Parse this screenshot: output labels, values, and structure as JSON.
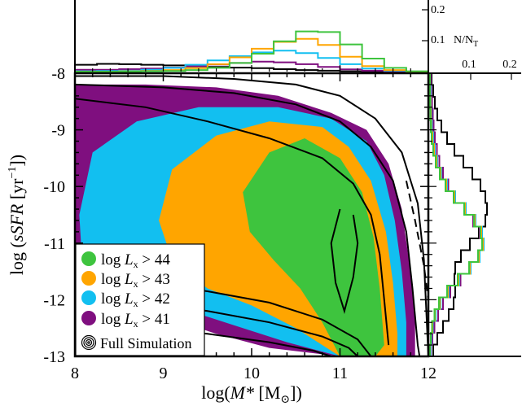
{
  "chart_data": {
    "type": "area",
    "xlabel_prefix": "log(",
    "xlabel_var": "M*",
    "xlabel_unit": " [M",
    "xlabel_sub": "⊙",
    "xlabel_suffix": "])",
    "ylabel_prefix": "log (",
    "ylabel_var": "sSFR",
    "ylabel_unit": " [yr",
    "ylabel_sup": "−1",
    "ylabel_suffix": "])",
    "xlim": [
      8,
      12
    ],
    "ylim": [
      -13,
      -8
    ],
    "x_ticks": [
      "8",
      "9",
      "10",
      "11",
      "12"
    ],
    "y_ticks": [
      "-8",
      "-9",
      "-10",
      "-11",
      "-12",
      "-13"
    ],
    "top_hist_ticks": [
      "0.1",
      "0.2"
    ],
    "top_hist_label": "N/N",
    "top_hist_label_sub": "T",
    "right_hist_ticks": [
      "0.1",
      "0.2"
    ],
    "legend_placement": "lower-left",
    "series": [
      {
        "name": "log L_x > 41",
        "label_prefix": "log ",
        "label_var": "L",
        "label_sub": "x",
        "label_suffix": " > 41",
        "color": "#7f0f7f",
        "contour": [
          [
            8.0,
            -8.2
          ],
          [
            8.8,
            -8.2
          ],
          [
            9.6,
            -8.25
          ],
          [
            10.3,
            -8.4
          ],
          [
            10.9,
            -8.7
          ],
          [
            11.3,
            -9.0
          ],
          [
            11.55,
            -9.6
          ],
          [
            11.7,
            -10.4
          ],
          [
            11.78,
            -11.3
          ],
          [
            11.85,
            -12.2
          ],
          [
            11.85,
            -13.0
          ],
          [
            11.0,
            -13.0
          ],
          [
            10.2,
            -12.85
          ],
          [
            9.6,
            -12.6
          ],
          [
            9.0,
            -12.3
          ],
          [
            8.5,
            -12.05
          ],
          [
            8.0,
            -11.85
          ]
        ],
        "top_hist": [
          0.006,
          0.006,
          0.008,
          0.01,
          0.013,
          0.018,
          0.023,
          0.028,
          0.032,
          0.03,
          0.024,
          0.015,
          0.007,
          0.003,
          0.001,
          0.0
        ],
        "right_hist": [
          0.002,
          0.003,
          0.005,
          0.007,
          0.009,
          0.012,
          0.017,
          0.023,
          0.032,
          0.045,
          0.062,
          0.085,
          0.106,
          0.122,
          0.128,
          0.12,
          0.1,
          0.075,
          0.05,
          0.032,
          0.02,
          0.011,
          0.006,
          0.002
        ]
      },
      {
        "name": "log L_x > 42",
        "label_prefix": "log ",
        "label_var": "L",
        "label_sub": "x",
        "label_suffix": " > 42",
        "color": "#12bff0",
        "contour": [
          [
            8.2,
            -9.4
          ],
          [
            8.7,
            -8.85
          ],
          [
            9.4,
            -8.6
          ],
          [
            10.3,
            -8.6
          ],
          [
            10.9,
            -8.8
          ],
          [
            11.3,
            -9.2
          ],
          [
            11.5,
            -9.8
          ],
          [
            11.62,
            -10.6
          ],
          [
            11.7,
            -11.5
          ],
          [
            11.75,
            -12.4
          ],
          [
            11.75,
            -13.0
          ],
          [
            11.0,
            -13.0
          ],
          [
            10.4,
            -12.75
          ],
          [
            9.8,
            -12.45
          ],
          [
            9.2,
            -12.15
          ],
          [
            8.6,
            -11.95
          ],
          [
            8.1,
            -11.8
          ],
          [
            8.05,
            -10.5
          ]
        ],
        "top_hist": [
          0.001,
          0.002,
          0.003,
          0.006,
          0.012,
          0.022,
          0.036,
          0.05,
          0.062,
          0.068,
          0.06,
          0.044,
          0.024,
          0.01,
          0.003,
          0.0
        ],
        "right_hist": [
          0.0,
          0.001,
          0.002,
          0.003,
          0.005,
          0.008,
          0.012,
          0.018,
          0.028,
          0.042,
          0.062,
          0.088,
          0.112,
          0.128,
          0.132,
          0.122,
          0.1,
          0.072,
          0.046,
          0.026,
          0.014,
          0.007,
          0.003,
          0.001
        ]
      },
      {
        "name": "log L_x > 43",
        "label_prefix": "log ",
        "label_var": "L",
        "label_sub": "x",
        "label_suffix": " > 43",
        "color": "#ffa500",
        "contour": [
          [
            9.1,
            -9.7
          ],
          [
            9.6,
            -9.1
          ],
          [
            10.2,
            -8.85
          ],
          [
            10.8,
            -8.95
          ],
          [
            11.1,
            -9.3
          ],
          [
            11.35,
            -9.9
          ],
          [
            11.52,
            -10.8
          ],
          [
            11.6,
            -11.7
          ],
          [
            11.65,
            -12.6
          ],
          [
            11.65,
            -13.0
          ],
          [
            11.0,
            -13.0
          ],
          [
            10.5,
            -12.5
          ],
          [
            10.0,
            -12.1
          ],
          [
            9.5,
            -11.8
          ],
          [
            9.1,
            -11.3
          ],
          [
            8.95,
            -10.6
          ]
        ],
        "top_hist": [
          0.0,
          0.0,
          0.001,
          0.002,
          0.005,
          0.011,
          0.024,
          0.046,
          0.074,
          0.096,
          0.106,
          0.086,
          0.048,
          0.018,
          0.005,
          0.0
        ],
        "right_hist": [
          0.0,
          0.0,
          0.001,
          0.002,
          0.003,
          0.006,
          0.01,
          0.016,
          0.026,
          0.04,
          0.06,
          0.086,
          0.11,
          0.126,
          0.13,
          0.12,
          0.098,
          0.07,
          0.044,
          0.024,
          0.012,
          0.006,
          0.002,
          0.0
        ]
      },
      {
        "name": "log L_x > 44",
        "label_prefix": "log ",
        "label_var": "L",
        "label_sub": "x",
        "label_suffix": " > 44",
        "color": "#3ec43e",
        "contour": [
          [
            9.9,
            -10.1
          ],
          [
            10.2,
            -9.4
          ],
          [
            10.6,
            -9.15
          ],
          [
            11.0,
            -9.5
          ],
          [
            11.25,
            -10.1
          ],
          [
            11.38,
            -10.9
          ],
          [
            11.45,
            -11.8
          ],
          [
            11.5,
            -12.8
          ],
          [
            11.4,
            -13.0
          ],
          [
            11.0,
            -13.0
          ],
          [
            10.8,
            -12.4
          ],
          [
            10.55,
            -11.8
          ],
          [
            10.25,
            -11.3
          ],
          [
            9.98,
            -10.8
          ]
        ],
        "top_hist": [
          0.0,
          0.0,
          0.0,
          0.001,
          0.002,
          0.005,
          0.012,
          0.028,
          0.058,
          0.098,
          0.13,
          0.128,
          0.088,
          0.042,
          0.012,
          0.001
        ],
        "right_hist": [
          0.0,
          0.0,
          0.0,
          0.001,
          0.002,
          0.004,
          0.008,
          0.014,
          0.024,
          0.038,
          0.058,
          0.084,
          0.108,
          0.124,
          0.128,
          0.118,
          0.096,
          0.068,
          0.042,
          0.022,
          0.011,
          0.005,
          0.002,
          0.0
        ]
      },
      {
        "name": "Full Simulation",
        "label": "Full Simulation",
        "color": "#000000",
        "contours": [
          [
            [
              8.0,
              -8.05
            ],
            [
              9.0,
              -8.05
            ],
            [
              9.8,
              -8.1
            ],
            [
              10.5,
              -8.2
            ],
            [
              11.0,
              -8.4
            ],
            [
              11.4,
              -8.8
            ],
            [
              11.7,
              -9.4
            ],
            [
              11.88,
              -10.3
            ],
            [
              11.95,
              -11.3
            ],
            [
              11.98,
              -12.3
            ],
            [
              12.0,
              -13.0
            ]
          ],
          [
            [
              8.0,
              -8.2
            ],
            [
              9.0,
              -8.25
            ],
            [
              9.8,
              -8.35
            ],
            [
              10.5,
              -8.55
            ],
            [
              11.0,
              -8.85
            ],
            [
              11.35,
              -9.3
            ],
            [
              11.6,
              -9.9
            ],
            [
              11.75,
              -10.8
            ],
            [
              11.82,
              -11.8
            ],
            [
              11.88,
              -12.8
            ],
            [
              11.9,
              -13.0
            ]
          ],
          [
            [
              8.0,
              -8.45
            ],
            [
              8.8,
              -8.6
            ],
            [
              9.5,
              -8.85
            ],
            [
              10.2,
              -9.15
            ],
            [
              10.8,
              -9.5
            ],
            [
              11.15,
              -9.95
            ],
            [
              11.35,
              -10.5
            ],
            [
              11.45,
              -11.2
            ],
            [
              11.5,
              -12.0
            ],
            [
              11.55,
              -12.8
            ]
          ],
          [
            [
              11.0,
              -10.4
            ],
            [
              10.9,
              -11.0
            ],
            [
              10.95,
              -11.7
            ],
            [
              11.05,
              -12.2
            ],
            [
              11.15,
              -11.6
            ],
            [
              11.2,
              -11.0
            ],
            [
              11.15,
              -10.5
            ]
          ],
          [
            [
              8.0,
              -11.6
            ],
            [
              8.8,
              -11.7
            ],
            [
              9.5,
              -11.85
            ],
            [
              10.2,
              -12.05
            ],
            [
              10.8,
              -12.35
            ],
            [
              11.2,
              -12.7
            ],
            [
              11.35,
              -13.0
            ]
          ],
          [
            [
              8.0,
              -11.95
            ],
            [
              8.8,
              -12.05
            ],
            [
              9.5,
              -12.2
            ],
            [
              10.2,
              -12.4
            ],
            [
              10.8,
              -12.65
            ],
            [
              11.1,
              -12.85
            ],
            [
              11.2,
              -13.0
            ]
          ],
          [
            [
              8.0,
              -12.35
            ],
            [
              8.8,
              -12.5
            ],
            [
              9.5,
              -12.6
            ],
            [
              10.2,
              -12.75
            ],
            [
              10.7,
              -12.9
            ],
            [
              10.9,
              -13.0
            ]
          ],
          [
            [
              11.75,
              -9.9
            ],
            [
              11.85,
              -10.6
            ],
            [
              11.95,
              -11.4
            ],
            [
              12.0,
              -12.0
            ]
          ]
        ],
        "top_hist": [
          0.022,
          0.025,
          0.024,
          0.022,
          0.02,
          0.017,
          0.015,
          0.013,
          0.011,
          0.008,
          0.005,
          0.003,
          0.001,
          0.0,
          0.0,
          0.0
        ],
        "right_hist": [
          0.004,
          0.008,
          0.012,
          0.018,
          0.028,
          0.042,
          0.06,
          0.082,
          0.104,
          0.124,
          0.136,
          0.14,
          0.136,
          0.12,
          0.098,
          0.076,
          0.062,
          0.06,
          0.062,
          0.058,
          0.046,
          0.032,
          0.018,
          0.008
        ]
      }
    ]
  }
}
